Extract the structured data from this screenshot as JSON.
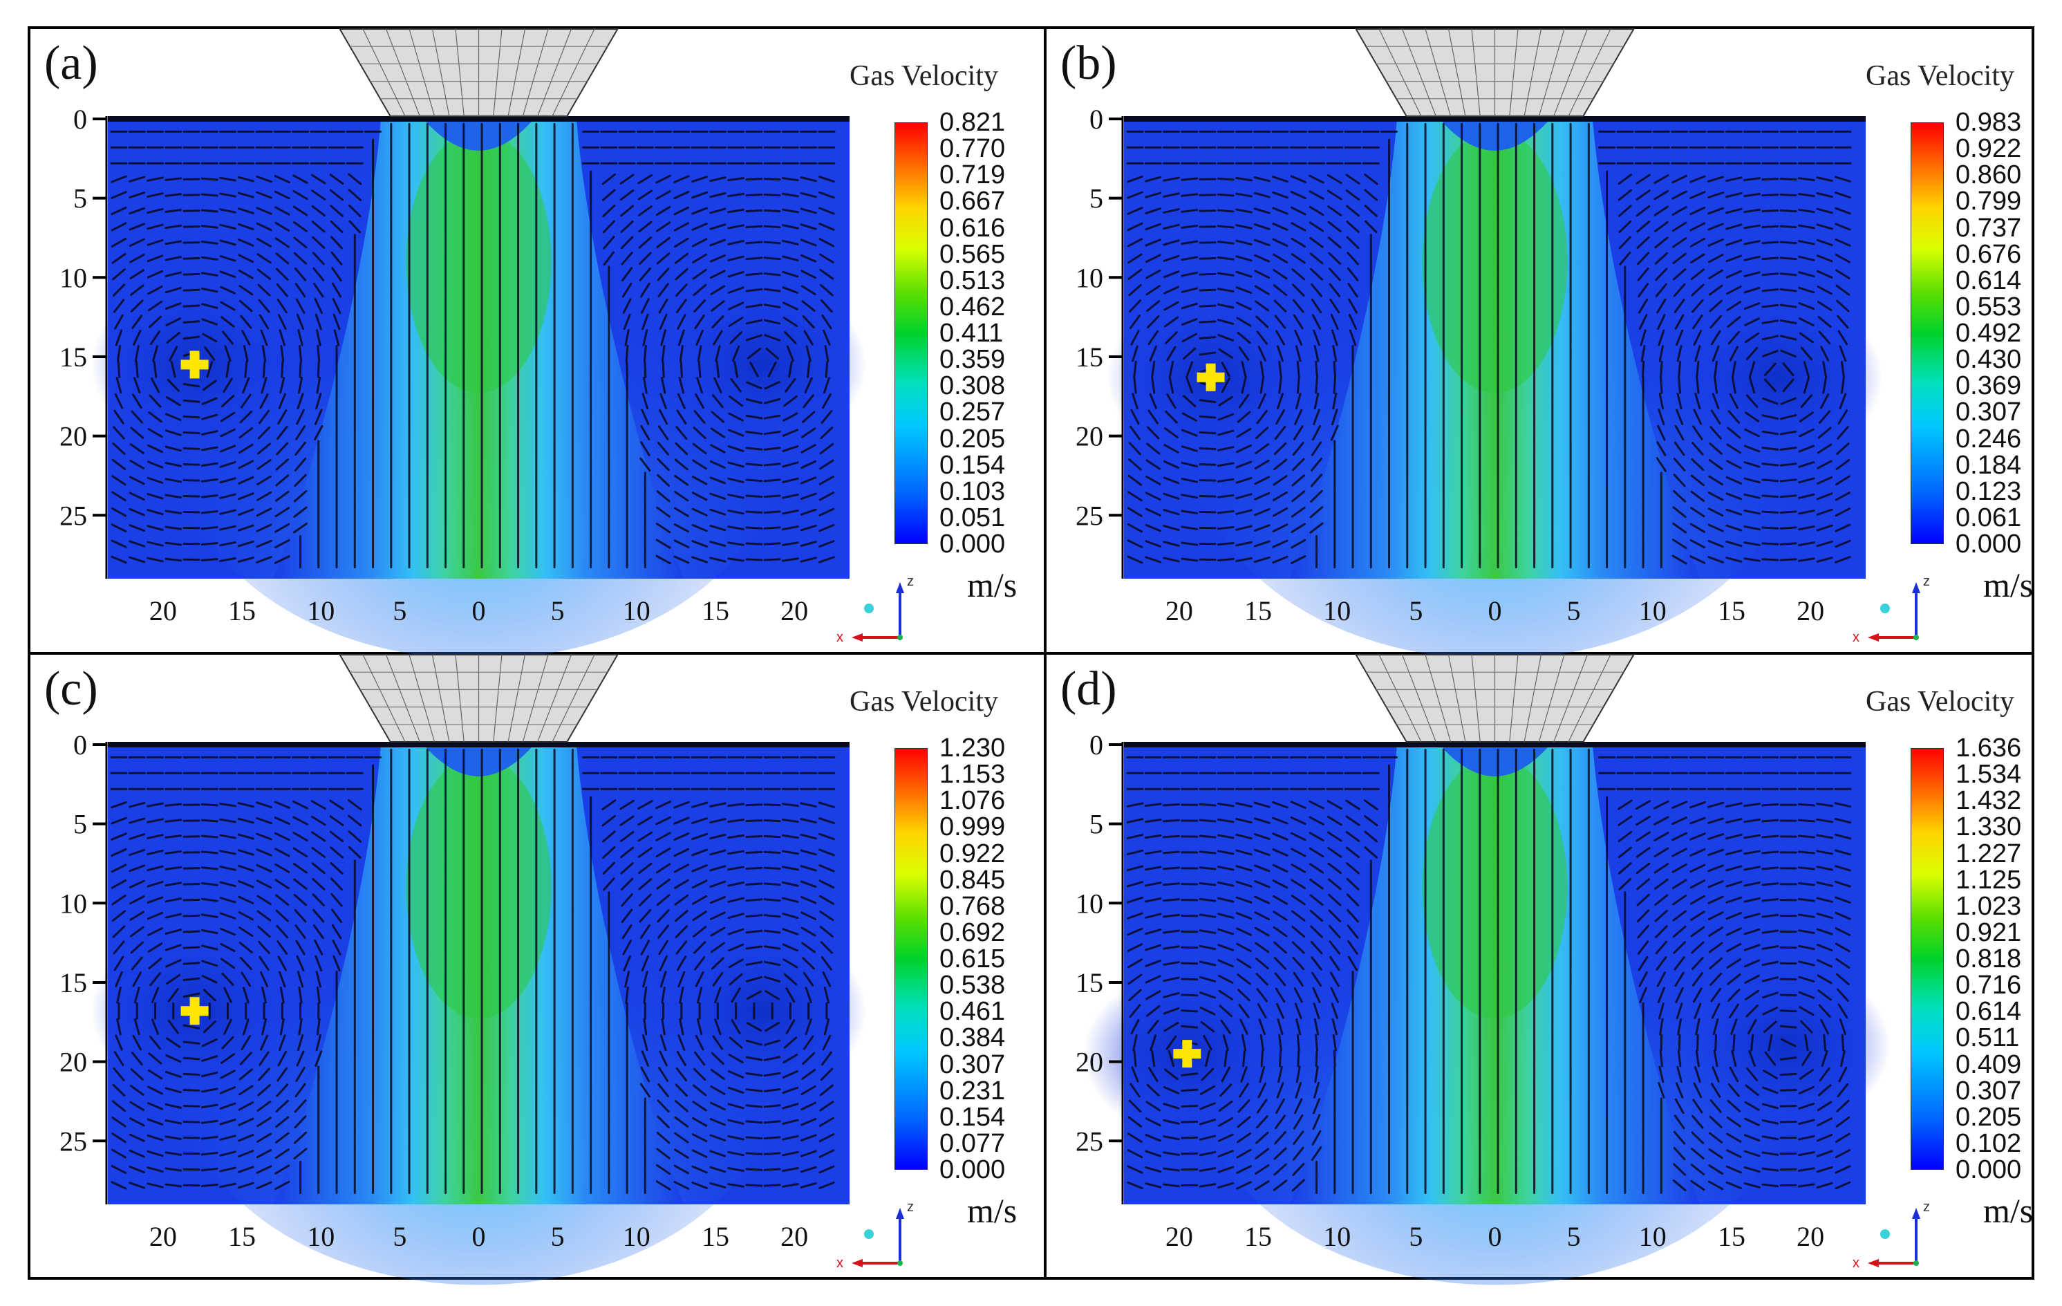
{
  "colors": {
    "field_low": "#1a3fe6",
    "field_mid": "#35b8ff",
    "jet_core": "#2ec83c",
    "marker": "#ffe600",
    "nozzle": "#d9d9d9"
  },
  "chart_data": [
    {
      "type": "heatmap",
      "panel_label": "(a)",
      "title": "Gas Velocity",
      "units": "m/s",
      "colorbar_ticks": [
        "0.821",
        "0.770",
        "0.719",
        "0.667",
        "0.616",
        "0.565",
        "0.513",
        "0.462",
        "0.411",
        "0.359",
        "0.308",
        "0.257",
        "0.205",
        "0.154",
        "0.103",
        "0.051",
        "0.000"
      ],
      "vmin": 0.0,
      "vmax": 0.821,
      "x_ticks": [
        "20",
        "15",
        "10",
        "5",
        "0",
        "5",
        "10",
        "15",
        "20"
      ],
      "y_ticks": [
        "0",
        "5",
        "10",
        "15",
        "20",
        "25"
      ],
      "marker_position": {
        "x": -18,
        "y": 15.5
      },
      "vortex_centers": [
        {
          "x": -18,
          "y": 15.5
        },
        {
          "x": 18,
          "y": 15.5
        }
      ]
    },
    {
      "type": "heatmap",
      "panel_label": "(b)",
      "title": "Gas Velocity",
      "units": "m/s",
      "colorbar_ticks": [
        "0.983",
        "0.922",
        "0.860",
        "0.799",
        "0.737",
        "0.676",
        "0.614",
        "0.553",
        "0.492",
        "0.430",
        "0.369",
        "0.307",
        "0.246",
        "0.184",
        "0.123",
        "0.061",
        "0.000"
      ],
      "vmin": 0.0,
      "vmax": 0.983,
      "x_ticks": [
        "20",
        "15",
        "10",
        "5",
        "0",
        "5",
        "10",
        "15",
        "20"
      ],
      "y_ticks": [
        "0",
        "5",
        "10",
        "15",
        "20",
        "25"
      ],
      "marker_position": {
        "x": -18,
        "y": 16.3
      },
      "vortex_centers": [
        {
          "x": -18,
          "y": 16.3
        },
        {
          "x": 18,
          "y": 16.3
        }
      ]
    },
    {
      "type": "heatmap",
      "panel_label": "(c)",
      "title": "Gas Velocity",
      "units": "m/s",
      "colorbar_ticks": [
        "1.230",
        "1.153",
        "1.076",
        "0.999",
        "0.922",
        "0.845",
        "0.768",
        "0.692",
        "0.615",
        "0.538",
        "0.461",
        "0.384",
        "0.307",
        "0.231",
        "0.154",
        "0.077",
        "0.000"
      ],
      "vmin": 0.0,
      "vmax": 1.23,
      "x_ticks": [
        "20",
        "15",
        "10",
        "5",
        "0",
        "5",
        "10",
        "15",
        "20"
      ],
      "y_ticks": [
        "0",
        "5",
        "10",
        "15",
        "20",
        "25"
      ],
      "marker_position": {
        "x": -18,
        "y": 16.8
      },
      "vortex_centers": [
        {
          "x": -18,
          "y": 16.8
        },
        {
          "x": 18,
          "y": 16.8
        }
      ]
    },
    {
      "type": "heatmap",
      "panel_label": "(d)",
      "title": "Gas Velocity",
      "units": "m/s",
      "colorbar_ticks": [
        "1.636",
        "1.534",
        "1.432",
        "1.330",
        "1.227",
        "1.125",
        "1.023",
        "0.921",
        "0.818",
        "0.716",
        "0.614",
        "0.511",
        "0.409",
        "0.307",
        "0.205",
        "0.102",
        "0.000"
      ],
      "vmin": 0.0,
      "vmax": 1.636,
      "x_ticks": [
        "20",
        "15",
        "10",
        "5",
        "0",
        "5",
        "10",
        "15",
        "20"
      ],
      "y_ticks": [
        "0",
        "5",
        "10",
        "15",
        "20",
        "25"
      ],
      "marker_position": {
        "x": -19.5,
        "y": 19.5
      },
      "vortex_centers": [
        {
          "x": -19.5,
          "y": 19.5
        },
        {
          "x": 18.5,
          "y": 19
        }
      ]
    }
  ],
  "axis_triad": {
    "z": "z",
    "x": "x"
  }
}
